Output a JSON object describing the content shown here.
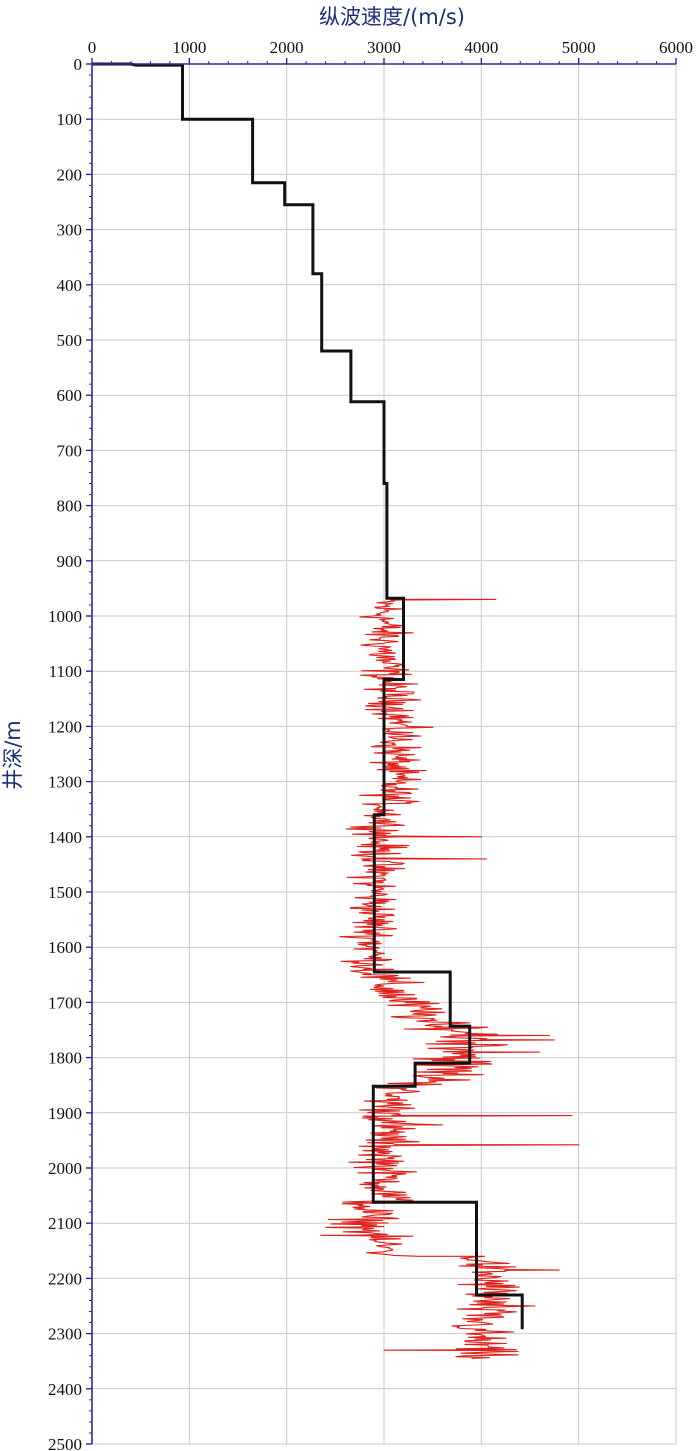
{
  "chart_data": {
    "type": "line",
    "xlabel": "纵波速度/(m/s)",
    "ylabel": "井深/m",
    "x_axis_position": "top",
    "y_axis_inverted": true,
    "xlim": [
      0,
      6000
    ],
    "ylim": [
      0,
      2500
    ],
    "x_ticks": [
      "0",
      "1000",
      "2000",
      "3000",
      "4000",
      "5000",
      "6000"
    ],
    "y_ticks": [
      "0",
      "100",
      "200",
      "300",
      "400",
      "500",
      "600",
      "700",
      "800",
      "900",
      "1000",
      "1100",
      "1200",
      "1300",
      "1400",
      "1500",
      "1600",
      "1700",
      "1800",
      "1900",
      "2000",
      "2100",
      "2200",
      "2300",
      "2400",
      "2500"
    ],
    "grid": true,
    "colors": {
      "axis": "#2a2aa0",
      "grid": "#c9c9c9",
      "step_line": "#111111",
      "log_line": "#e0201b"
    },
    "series": [
      {
        "kind": "step",
        "points": [
          [
            0,
            0
          ],
          [
            400,
            0
          ],
          [
            450,
            2
          ],
          [
            930,
            2
          ],
          [
            930,
            100
          ],
          [
            1650,
            100
          ],
          [
            1650,
            215
          ],
          [
            1980,
            215
          ],
          [
            1980,
            255
          ],
          [
            2270,
            255
          ],
          [
            2270,
            380
          ],
          [
            2360,
            380
          ],
          [
            2360,
            520
          ],
          [
            2660,
            520
          ],
          [
            2660,
            612
          ],
          [
            3000,
            612
          ],
          [
            3000,
            760
          ],
          [
            3030,
            760
          ],
          [
            3030,
            968
          ],
          [
            3200,
            968
          ],
          [
            3200,
            1115
          ],
          [
            3000,
            1115
          ],
          [
            3000,
            1360
          ],
          [
            2900,
            1360
          ],
          [
            2900,
            1645
          ],
          [
            3680,
            1645
          ],
          [
            3680,
            1743
          ],
          [
            3880,
            1743
          ],
          [
            3880,
            1810
          ],
          [
            3320,
            1810
          ],
          [
            3320,
            1852
          ],
          [
            2890,
            1852
          ],
          [
            2890,
            2062
          ],
          [
            3950,
            2062
          ],
          [
            3950,
            2230
          ],
          [
            4420,
            2230
          ],
          [
            4420,
            2292
          ]
        ]
      },
      {
        "kind": "log",
        "segments": [
          {
            "from": 968,
            "to": 1640,
            "base": [
              3000,
              3000,
              3150,
              3100,
              2950,
              2900,
              2880
            ],
            "amplitude": 400
          },
          {
            "from": 1640,
            "to": 1745,
            "base": [
              2900,
              3050,
              3300,
              3500
            ],
            "amplitude": 520
          },
          {
            "from": 1745,
            "to": 1850,
            "base": [
              3800,
              3950,
              3700,
              3500
            ],
            "amplitude": 700
          },
          {
            "from": 1850,
            "to": 2060,
            "base": [
              3100,
              3050,
              3000,
              3050
            ],
            "amplitude": 450
          },
          {
            "from": 2060,
            "to": 2160,
            "base": [
              2850,
              2800,
              3100
            ],
            "amplitude": 480
          },
          {
            "from": 2160,
            "to": 2345,
            "base": [
              4000,
              4100,
              3950,
              4000
            ],
            "amplitude": 520
          }
        ],
        "spikes": [
          [
            970,
            4150
          ],
          [
            1400,
            4000
          ],
          [
            1440,
            4050
          ],
          [
            1760,
            4700
          ],
          [
            1768,
            4750
          ],
          [
            1790,
            4600
          ],
          [
            1905,
            4930
          ],
          [
            1922,
            3600
          ],
          [
            1958,
            5000
          ],
          [
            2185,
            4800
          ],
          [
            2250,
            4550
          ],
          [
            2330,
            3000
          ],
          [
            2122,
            2350
          ]
        ]
      }
    ]
  }
}
